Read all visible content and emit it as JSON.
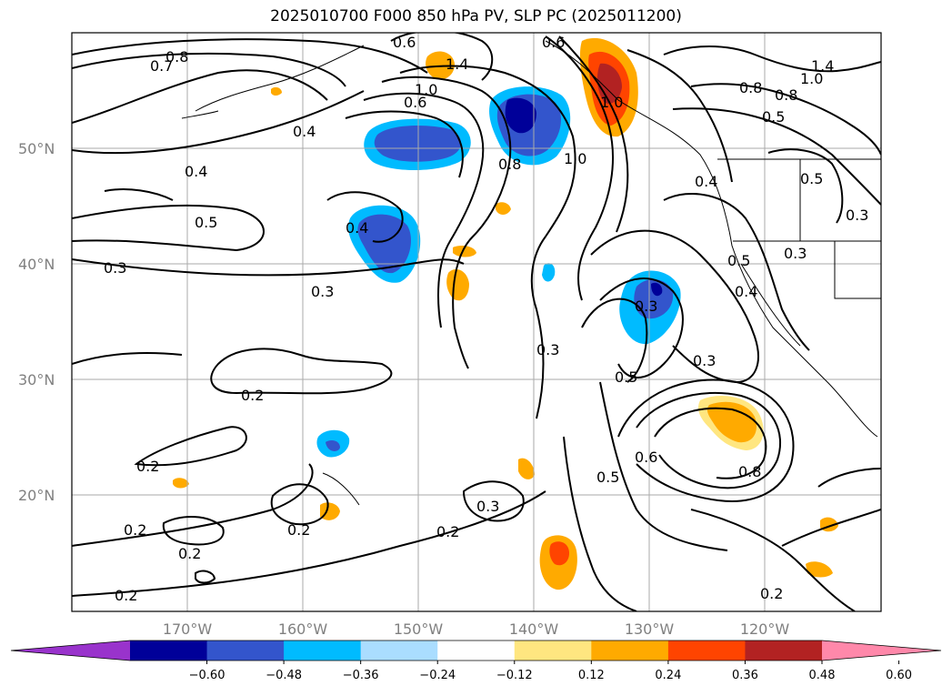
{
  "title": "2025010700 F000 850 hPa PV, SLP PC (2025011200)",
  "lat_labels": [
    "50°N",
    "40°N",
    "30°N",
    "20°N"
  ],
  "lon_labels": [
    "170°W",
    "160°W",
    "150°W",
    "140°W",
    "130°W",
    "120°W"
  ],
  "contour_labels": [
    "0.8",
    "0.7",
    "0.4",
    "0.4",
    "0.5",
    "0.3",
    "0.3",
    "0.2",
    "0.2",
    "0.2",
    "0.2",
    "0.2",
    "0.2",
    "0.4",
    "0.6",
    "1.0",
    "1.4",
    "0.8",
    "1.0",
    "0.6",
    "1.0",
    "0.4",
    "0.8",
    "0.3",
    "0.3",
    "0.5",
    "0.4",
    "0.6",
    "0.5",
    "0.8",
    "0.3",
    "0.2",
    "0.5",
    "0.3",
    "0.2",
    "1.0",
    "0.8",
    "0.5",
    "1.4",
    "0.3",
    "0.5",
    "0.6",
    "0.3"
  ],
  "colorbar": {
    "colors": [
      "#9933cc",
      "#000099",
      "#3355cc",
      "#00bbff",
      "#aaddff",
      "#ffffff",
      "#ffe680",
      "#ffaa00",
      "#ff4400",
      "#b22222",
      "#ff88aa"
    ],
    "tick_labels": [
      "−0.60",
      "−0.48",
      "−0.36",
      "−0.24",
      "−0.12",
      "0.12",
      "0.24",
      "0.36",
      "0.48",
      "0.60"
    ]
  }
}
